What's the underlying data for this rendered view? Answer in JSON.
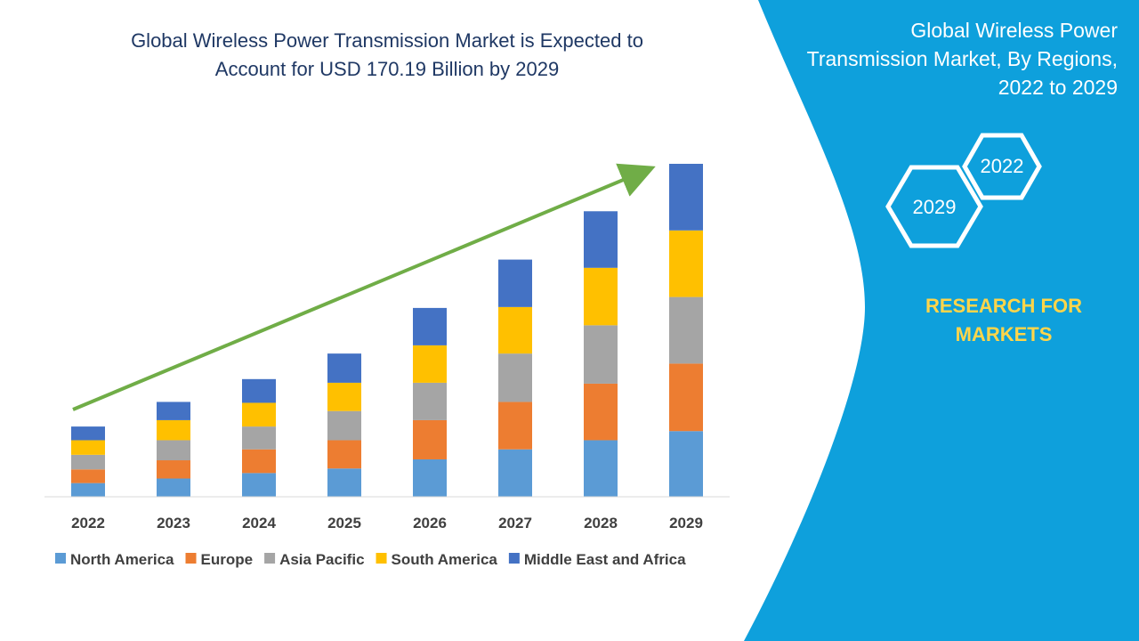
{
  "title": {
    "line1": "Global Wireless Power Transmission Market is Expected to",
    "line2": "Account for USD 170.19 Billion by 2029"
  },
  "side_panel": {
    "title_line1": "Global Wireless Power",
    "title_line2": "Transmission Market, By Regions,",
    "title_line3": "2022 to 2029",
    "hex_start": "2022",
    "hex_end": "2029",
    "brand_line1": "RESEARCH FOR",
    "brand_line2": "MARKETS",
    "colors": {
      "panel": "#0ea0dc",
      "brand": "#ffd54a",
      "hex_outline": "#ffffff"
    }
  },
  "chart_data": {
    "type": "bar",
    "stacked": true,
    "categories": [
      "2022",
      "2023",
      "2024",
      "2025",
      "2026",
      "2027",
      "2028",
      "2029"
    ],
    "series": [
      {
        "name": "North America",
        "color": "#5b9bd5",
        "values": [
          15,
          20,
          26,
          31,
          41,
          52,
          62,
          72
        ]
      },
      {
        "name": "Europe",
        "color": "#ed7d31",
        "values": [
          15,
          20,
          26,
          31,
          43,
          52,
          62,
          74
        ]
      },
      {
        "name": "Asia Pacific",
        "color": "#a5a5a5",
        "values": [
          16,
          22,
          25,
          32,
          41,
          53,
          64,
          73
        ]
      },
      {
        "name": "South America",
        "color": "#ffc000",
        "values": [
          16,
          22,
          26,
          31,
          41,
          51,
          63,
          73
        ]
      },
      {
        "name": "Middle East and Africa",
        "color": "#4472c4",
        "values": [
          15,
          20,
          26,
          32,
          41,
          52,
          62,
          73
        ]
      }
    ],
    "ylim": [
      0,
      400
    ],
    "legend_position": "bottom",
    "trend_arrow": {
      "color": "#70ad47"
    },
    "grid": false
  }
}
